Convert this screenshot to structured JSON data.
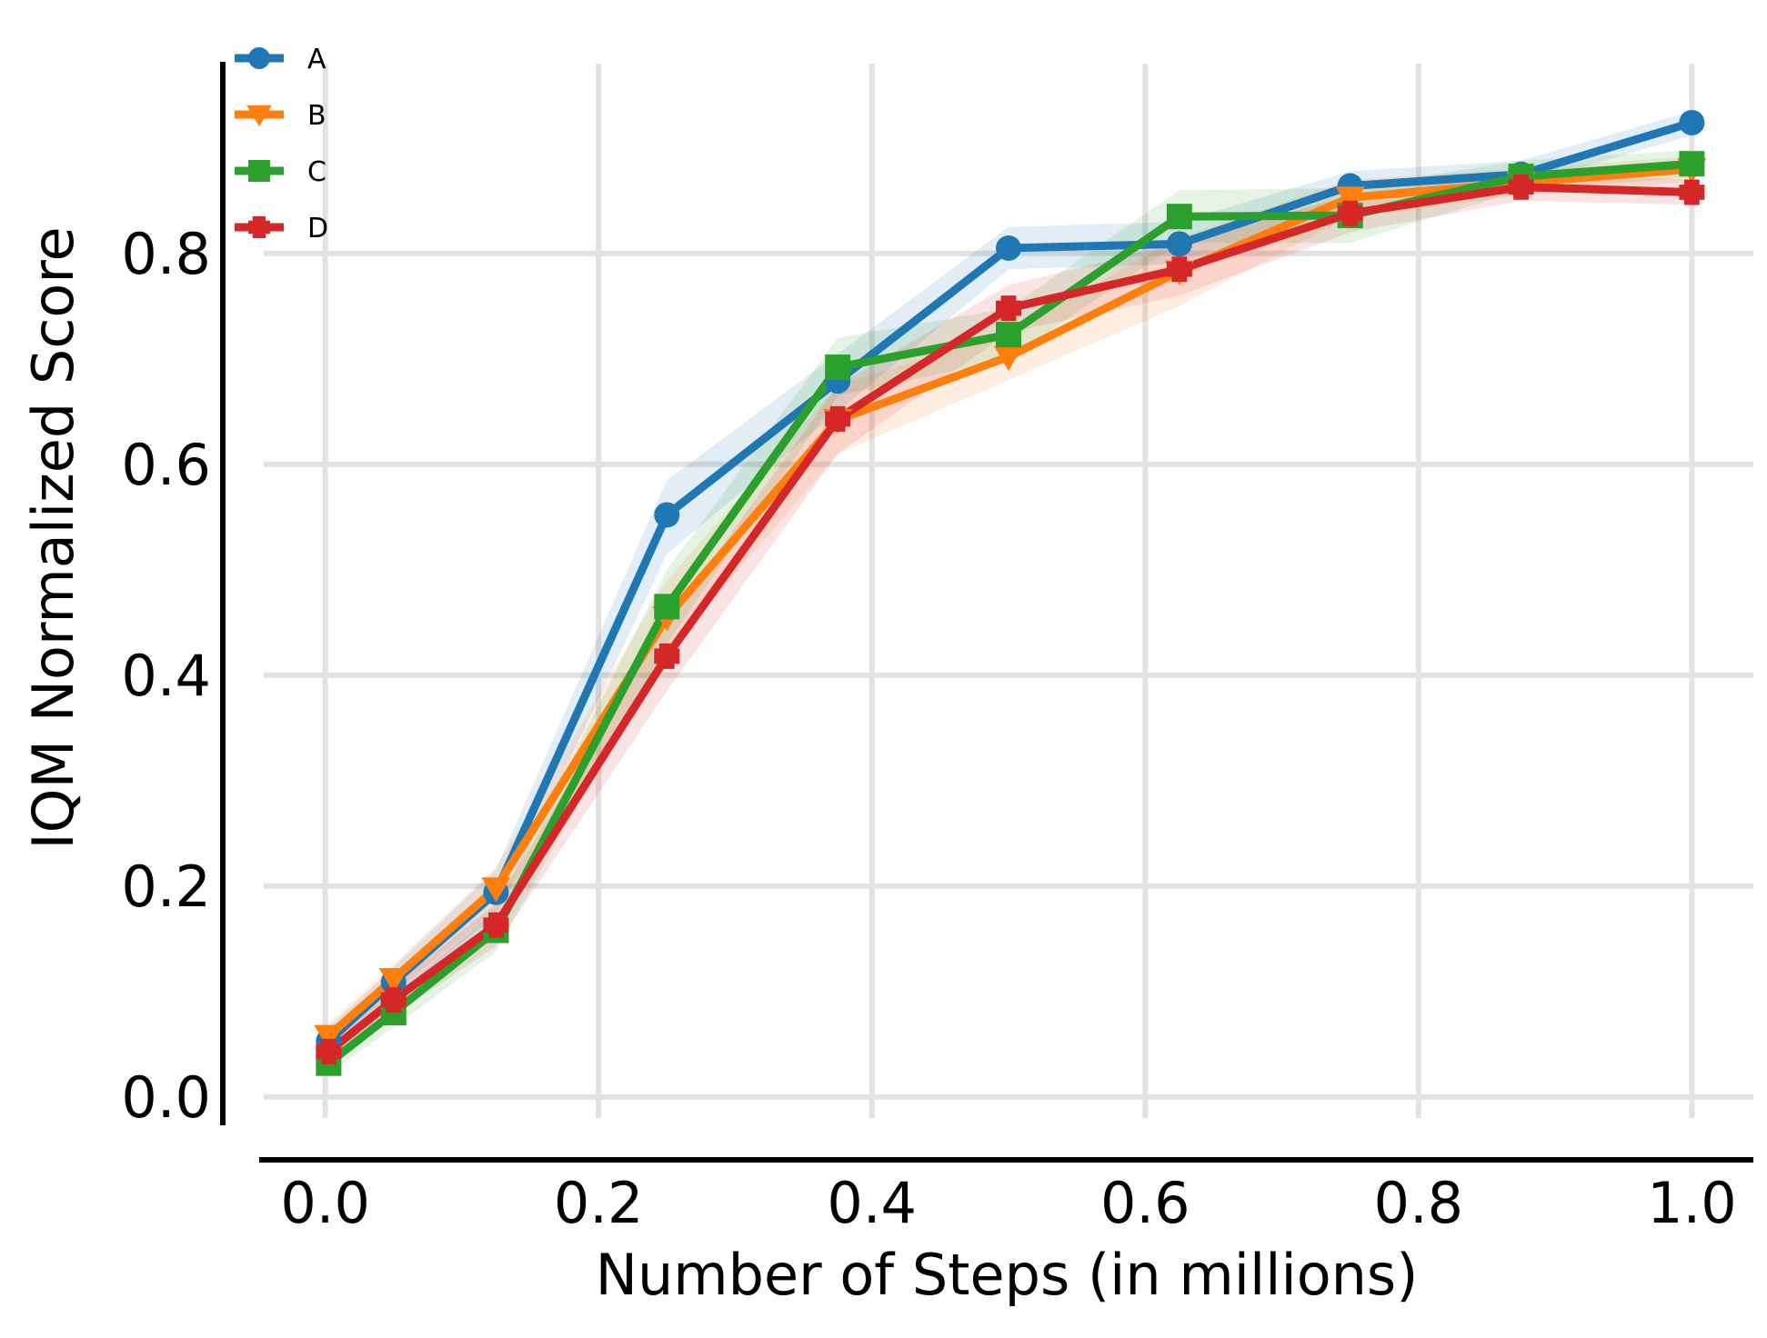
{
  "chart_data": {
    "type": "line",
    "title": "",
    "xlabel": "Number of Steps (in millions)",
    "ylabel": "IQM Normalized Score",
    "xlim": [
      -0.045,
      1.045
    ],
    "ylim": [
      -0.02,
      0.98
    ],
    "xticks": [
      0.0,
      0.2,
      0.4,
      0.6,
      0.8,
      1.0
    ],
    "xtick_labels": [
      "0.0",
      "0.2",
      "0.4",
      "0.6",
      "0.8",
      "1.0"
    ],
    "yticks": [
      0.0,
      0.2,
      0.4,
      0.6,
      0.8
    ],
    "ytick_labels": [
      "0.0",
      "0.2",
      "0.4",
      "0.6",
      "0.8"
    ],
    "grid": true,
    "legend_position": "top-left",
    "x": [
      0.0025,
      0.05,
      0.125,
      0.25,
      0.375,
      0.5,
      0.625,
      0.75,
      0.875,
      1.0
    ],
    "series": [
      {
        "name": "A",
        "color": "#1f77b4",
        "marker": "circle",
        "values": [
          0.053,
          0.109,
          0.194,
          0.552,
          0.679,
          0.805,
          0.809,
          0.864,
          0.875,
          0.924
        ],
        "lower": [
          0.04,
          0.095,
          0.172,
          0.515,
          0.65,
          0.785,
          0.79,
          0.85,
          0.865,
          0.912
        ],
        "upper": [
          0.066,
          0.123,
          0.216,
          0.585,
          0.705,
          0.825,
          0.83,
          0.878,
          0.888,
          0.935
        ]
      },
      {
        "name": "B",
        "color": "#ff7f0e",
        "marker": "triangle-down",
        "values": [
          0.058,
          0.112,
          0.198,
          0.455,
          0.642,
          0.702,
          0.783,
          0.853,
          0.867,
          0.88
        ],
        "lower": [
          0.046,
          0.098,
          0.178,
          0.42,
          0.61,
          0.68,
          0.75,
          0.835,
          0.855,
          0.868
        ],
        "upper": [
          0.07,
          0.126,
          0.218,
          0.49,
          0.675,
          0.725,
          0.815,
          0.87,
          0.88,
          0.892
        ]
      },
      {
        "name": "C",
        "color": "#2ca02c",
        "marker": "square",
        "values": [
          0.032,
          0.08,
          0.158,
          0.465,
          0.692,
          0.723,
          0.835,
          0.836,
          0.873,
          0.885
        ],
        "lower": [
          0.022,
          0.066,
          0.138,
          0.43,
          0.665,
          0.7,
          0.81,
          0.81,
          0.86,
          0.872
        ],
        "upper": [
          0.044,
          0.094,
          0.178,
          0.5,
          0.72,
          0.748,
          0.86,
          0.862,
          0.888,
          0.898
        ]
      },
      {
        "name": "D",
        "color": "#d62728",
        "marker": "plus",
        "values": [
          0.043,
          0.092,
          0.163,
          0.418,
          0.643,
          0.748,
          0.785,
          0.838,
          0.863,
          0.858
        ],
        "lower": [
          0.032,
          0.078,
          0.143,
          0.385,
          0.61,
          0.725,
          0.76,
          0.82,
          0.85,
          0.846
        ],
        "upper": [
          0.054,
          0.106,
          0.183,
          0.45,
          0.675,
          0.77,
          0.81,
          0.855,
          0.876,
          0.87
        ]
      }
    ]
  }
}
